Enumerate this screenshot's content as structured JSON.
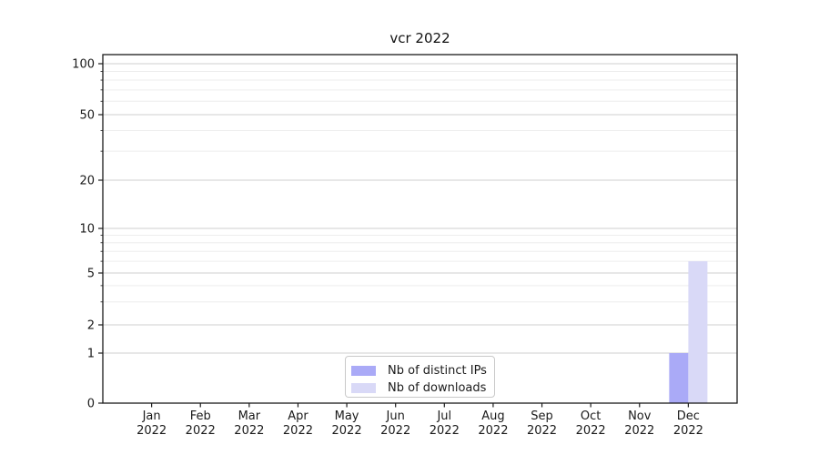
{
  "chart_data": {
    "type": "bar",
    "title": "vcr 2022",
    "categories": [
      "Jan",
      "Feb",
      "Mar",
      "Apr",
      "May",
      "Jun",
      "Jul",
      "Aug",
      "Sep",
      "Oct",
      "Nov",
      "Dec"
    ],
    "category_year": "2022",
    "series": [
      {
        "name": "Nb of distinct IPs",
        "color": "#aaaaf7",
        "values": [
          0,
          0,
          0,
          0,
          0,
          0,
          0,
          0,
          0,
          0,
          0,
          1
        ]
      },
      {
        "name": "Nb of downloads",
        "color": "#d9d9f7",
        "values": [
          0,
          0,
          0,
          0,
          0,
          0,
          0,
          0,
          0,
          0,
          0,
          6
        ]
      }
    ],
    "xlabel": "",
    "ylabel": "",
    "yscale": "symlog",
    "ylim": [
      0,
      114
    ],
    "y_major_ticks": [
      0,
      1,
      2,
      5,
      10,
      20,
      50,
      100
    ],
    "y_minor_ticks": [
      3,
      4,
      6,
      7,
      8,
      9,
      30,
      40,
      60,
      70,
      80,
      90
    ],
    "grid": true,
    "legend_position": "lower center"
  },
  "colors": {
    "major_grid": "#cfcfcf",
    "minor_grid": "#ededed",
    "axis": "#1a1a1a",
    "text": "#1a1a1a",
    "background": "#ffffff"
  }
}
